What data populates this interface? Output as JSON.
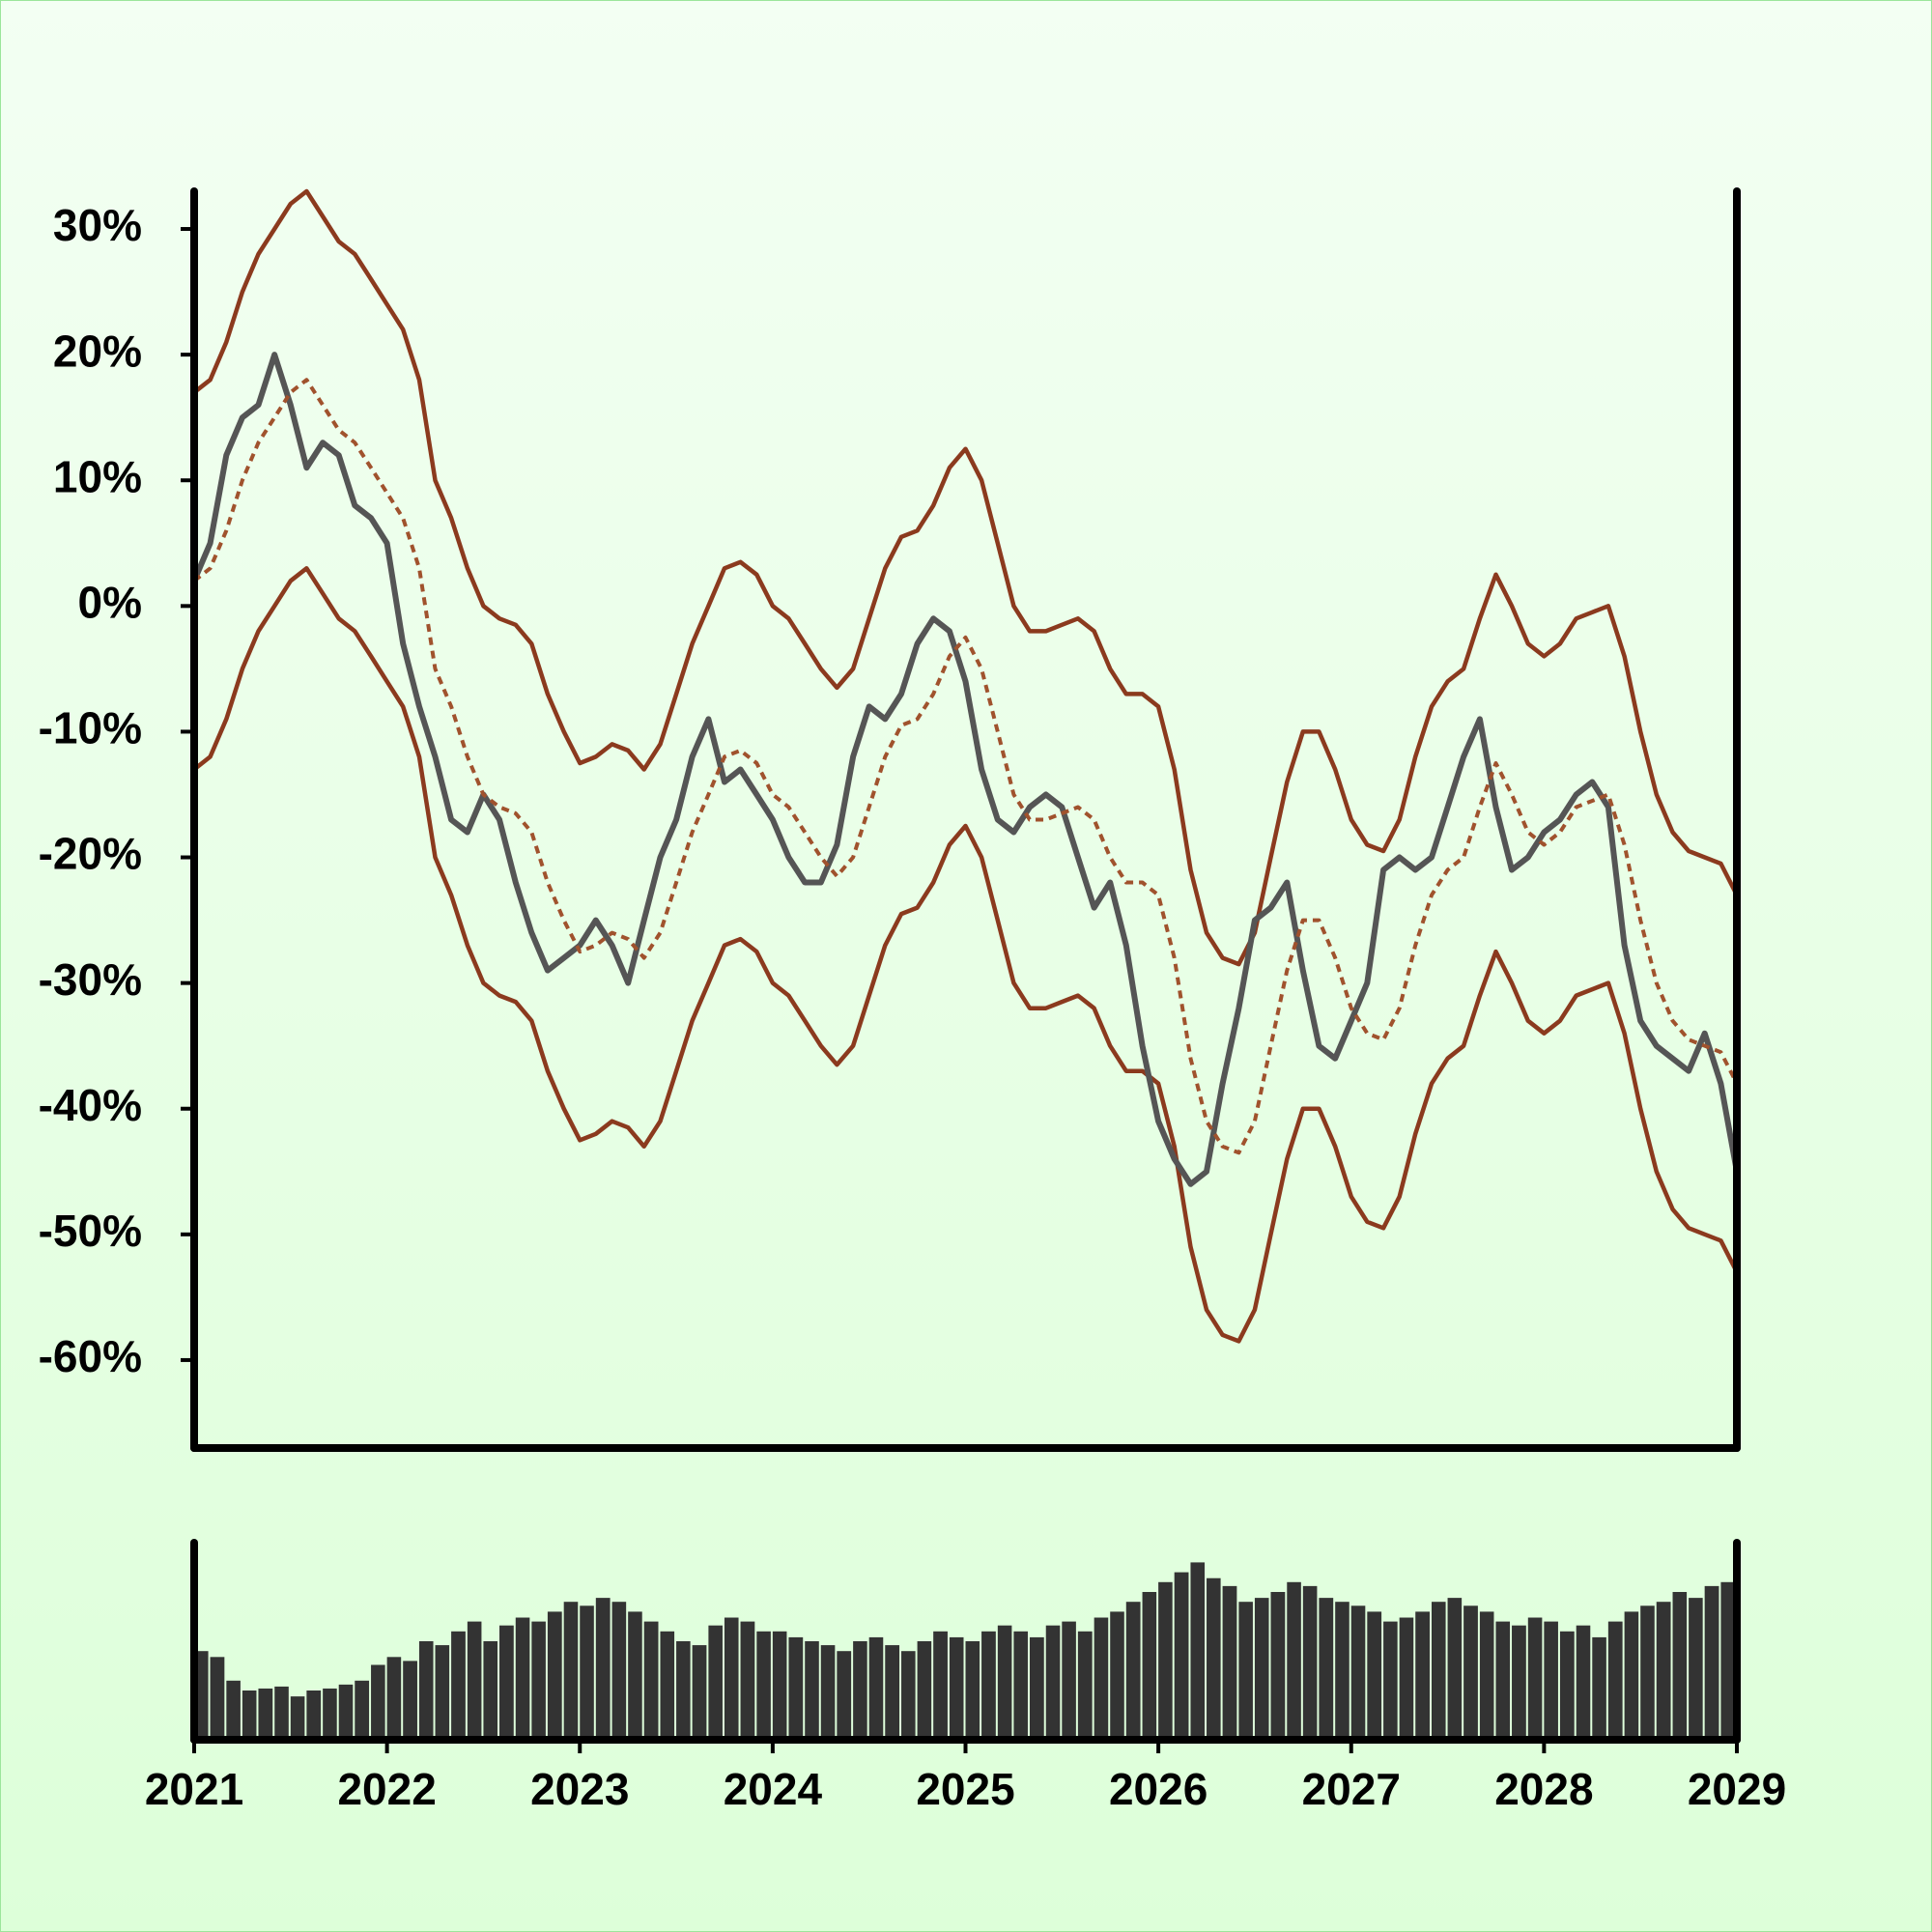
{
  "chart_data": [
    {
      "type": "line",
      "x": [
        2021,
        2021.083,
        2021.167,
        2021.25,
        2021.333,
        2021.417,
        2021.5,
        2021.583,
        2021.667,
        2021.75,
        2021.833,
        2021.917,
        2022,
        2022.083,
        2022.167,
        2022.25,
        2022.333,
        2022.417,
        2022.5,
        2022.583,
        2022.667,
        2022.75,
        2022.833,
        2022.917,
        2023,
        2023.083,
        2023.167,
        2023.25,
        2023.333,
        2023.417,
        2023.5,
        2023.583,
        2023.667,
        2023.75,
        2023.833,
        2023.917,
        2024,
        2024.083,
        2024.167,
        2024.25,
        2024.333,
        2024.417,
        2024.5,
        2024.583,
        2024.667,
        2024.75,
        2024.833,
        2024.917,
        2025,
        2025.083,
        2025.167,
        2025.25,
        2025.333,
        2025.417,
        2025.5,
        2025.583,
        2025.667,
        2025.75,
        2025.833,
        2025.917,
        2026,
        2026.083,
        2026.167,
        2026.25,
        2026.333,
        2026.417,
        2026.5,
        2026.583,
        2026.667,
        2026.75,
        2026.833,
        2026.917,
        2027,
        2027.083,
        2027.167,
        2027.25,
        2027.333,
        2027.417,
        2027.5,
        2027.583,
        2027.667,
        2027.75,
        2027.833,
        2027.917,
        2028,
        2028.083,
        2028.167,
        2028.25,
        2028.333,
        2028.417,
        2028.5,
        2028.583,
        2028.667,
        2028.75,
        2028.833,
        2028.917,
        2029
      ],
      "series": [
        {
          "color": "#8b3a1e",
          "values": [
            17,
            18,
            21,
            25,
            28,
            30,
            32,
            33,
            31,
            29,
            28,
            26,
            24,
            22,
            18,
            10,
            7,
            3,
            0,
            -1,
            -1.5,
            -3,
            -7,
            -10,
            -12.5,
            -12,
            -11,
            -11.5,
            -13,
            -11,
            -7,
            -3,
            0,
            3,
            3.5,
            2.5,
            0,
            -1,
            -3,
            -5,
            -6.5,
            -5,
            -1,
            3,
            5.5,
            6,
            8,
            11,
            12.5,
            10,
            5,
            0,
            -2,
            -2,
            -1.5,
            -1,
            -2,
            -5,
            -7,
            -7,
            -8,
            -13,
            -21,
            -26,
            -28,
            -28.5,
            -26,
            -20,
            -14,
            -10,
            -10,
            -13,
            -17,
            -19,
            -19.5,
            -17,
            -12,
            -8,
            -6,
            -5,
            -1,
            2.5,
            0,
            -3,
            -4,
            -3,
            -1,
            -0.5,
            0,
            -4,
            -10,
            -15,
            -18,
            -19.5,
            -20,
            -20.5,
            -23
          ]
        },
        {
          "color": "#8b3a1e",
          "values": [
            -13,
            -12,
            -9,
            -5,
            -2,
            0,
            2,
            3,
            1,
            -1,
            -2,
            -4,
            -6,
            -8,
            -12,
            -20,
            -23,
            -27,
            -30,
            -31,
            -31.5,
            -33,
            -37,
            -40,
            -42.5,
            -42,
            -41,
            -41.5,
            -43,
            -41,
            -37,
            -33,
            -30,
            -27,
            -26.5,
            -27.5,
            -30,
            -31,
            -33,
            -35,
            -36.5,
            -35,
            -31,
            -27,
            -24.5,
            -24,
            -22,
            -19,
            -17.5,
            -20,
            -25,
            -30,
            -32,
            -32,
            -31.5,
            -31,
            -32,
            -35,
            -37,
            -37,
            -38,
            -43,
            -51,
            -56,
            -58,
            -58.5,
            -56,
            -50,
            -44,
            -40,
            -40,
            -43,
            -47,
            -49,
            -49.5,
            -47,
            -42,
            -38,
            -36,
            -35,
            -31,
            -27.5,
            -30,
            -33,
            -34,
            -33,
            -31,
            -30.5,
            -30,
            -34,
            -40,
            -45,
            -48,
            -49.5,
            -50,
            -50.5,
            -53
          ]
        },
        {
          "color": "#555555",
          "values": [
            2,
            5,
            12,
            15,
            16,
            20,
            16,
            11,
            13,
            12,
            8,
            7,
            5,
            -3,
            -8,
            -12,
            -17,
            -18,
            -15,
            -17,
            -22,
            -26,
            -29,
            -28,
            -27,
            -25,
            -27,
            -30,
            -25,
            -20,
            -17,
            -12,
            -9,
            -14,
            -13,
            -15,
            -17,
            -20,
            -22,
            -22,
            -19,
            -12,
            -8,
            -9,
            -7,
            -3,
            -1,
            -2,
            -6,
            -13,
            -17,
            -18,
            -16,
            -15,
            -16,
            -20,
            -24,
            -22,
            -27,
            -35,
            -41,
            -44,
            -46,
            -45,
            -38,
            -32,
            -25,
            -24,
            -22,
            -29,
            -35,
            -36,
            -33,
            -30,
            -21,
            -20,
            -21,
            -20,
            -16,
            -12,
            -9,
            -16,
            -21,
            -20,
            -18,
            -17,
            -15,
            -14,
            -16,
            -27,
            -33,
            -35,
            -36,
            -37,
            -34,
            -38,
            -45
          ]
        },
        {
          "color": "#a0522d",
          "dashed": true,
          "values": [
            2,
            3,
            6,
            10,
            13,
            15,
            17,
            18,
            16,
            14,
            13,
            11,
            9,
            7,
            3,
            -5,
            -8,
            -12,
            -15,
            -16,
            -16.5,
            -18,
            -22,
            -25,
            -27.5,
            -27,
            -26,
            -26.5,
            -28,
            -26,
            -22,
            -18,
            -15,
            -12,
            -11.5,
            -12.5,
            -15,
            -16,
            -18,
            -20,
            -21.5,
            -20,
            -16,
            -12,
            -9.5,
            -9,
            -7,
            -4,
            -2.5,
            -5,
            -10,
            -15,
            -17,
            -17,
            -16.5,
            -16,
            -17,
            -20,
            -22,
            -22,
            -23,
            -28,
            -36,
            -41,
            -43,
            -43.5,
            -41,
            -35,
            -29,
            -25,
            -25,
            -28,
            -32,
            -34,
            -34.5,
            -32,
            -27,
            -23,
            -21,
            -20,
            -16,
            -12.5,
            -15,
            -18,
            -19,
            -18,
            -16,
            -15.5,
            -15,
            -19,
            -25,
            -30,
            -33,
            -34.5,
            -35,
            -35.5,
            -38
          ]
        }
      ],
      "xlim": [
        2021,
        2029
      ],
      "ylim": [
        -67,
        33
      ],
      "yticks": [
        {
          "value": 30,
          "label": "30%"
        },
        {
          "value": 20,
          "label": "20%"
        },
        {
          "value": 10,
          "label": "10%"
        },
        {
          "value": 0,
          "label": "0%"
        },
        {
          "value": -10,
          "label": "-10%"
        },
        {
          "value": -20,
          "label": "-20%"
        },
        {
          "value": -30,
          "label": "-30%"
        },
        {
          "value": -40,
          "label": "-40%"
        },
        {
          "value": -50,
          "label": "-50%"
        },
        {
          "value": -60,
          "label": "-60%"
        }
      ]
    },
    {
      "type": "bar",
      "color": "#333333",
      "x": [
        2021,
        2021.083,
        2021.167,
        2021.25,
        2021.333,
        2021.417,
        2021.5,
        2021.583,
        2021.667,
        2021.75,
        2021.833,
        2021.917,
        2022,
        2022.083,
        2022.167,
        2022.25,
        2022.333,
        2022.417,
        2022.5,
        2022.583,
        2022.667,
        2022.75,
        2022.833,
        2022.917,
        2023,
        2023.083,
        2023.167,
        2023.25,
        2023.333,
        2023.417,
        2023.5,
        2023.583,
        2023.667,
        2023.75,
        2023.833,
        2023.917,
        2024,
        2024.083,
        2024.167,
        2024.25,
        2024.333,
        2024.417,
        2024.5,
        2024.583,
        2024.667,
        2024.75,
        2024.833,
        2024.917,
        2025,
        2025.083,
        2025.167,
        2025.25,
        2025.333,
        2025.417,
        2025.5,
        2025.583,
        2025.667,
        2025.75,
        2025.833,
        2025.917,
        2026,
        2026.083,
        2026.167,
        2026.25,
        2026.333,
        2026.417,
        2026.5,
        2026.583,
        2026.667,
        2026.75,
        2026.833,
        2026.917,
        2027,
        2027.083,
        2027.167,
        2027.25,
        2027.333,
        2027.417,
        2027.5,
        2027.583,
        2027.667,
        2027.75,
        2027.833,
        2027.917,
        2028,
        2028.083,
        2028.167,
        2028.25,
        2028.333,
        2028.417,
        2028.5,
        2028.583,
        2028.667,
        2028.75,
        2028.833,
        2028.917
      ],
      "values": [
        45,
        42,
        30,
        25,
        26,
        27,
        22,
        25,
        26,
        28,
        30,
        38,
        42,
        40,
        50,
        48,
        55,
        60,
        50,
        58,
        62,
        60,
        65,
        70,
        68,
        72,
        70,
        65,
        60,
        55,
        50,
        48,
        58,
        62,
        60,
        55,
        55,
        52,
        50,
        48,
        45,
        50,
        52,
        48,
        45,
        50,
        55,
        52,
        50,
        55,
        58,
        55,
        52,
        58,
        60,
        55,
        62,
        65,
        70,
        75,
        80,
        85,
        90,
        82,
        78,
        70,
        72,
        75,
        80,
        78,
        72,
        70,
        68,
        65,
        60,
        62,
        65,
        70,
        72,
        68,
        65,
        60,
        58,
        62,
        60,
        55,
        58,
        52,
        60,
        65,
        68,
        70,
        75,
        72,
        78,
        80
      ],
      "xlim": [
        2021,
        2029
      ],
      "ylim": [
        0,
        100
      ],
      "xticks": [
        2021,
        2022,
        2023,
        2024,
        2025,
        2026,
        2027,
        2028,
        2029
      ]
    }
  ]
}
